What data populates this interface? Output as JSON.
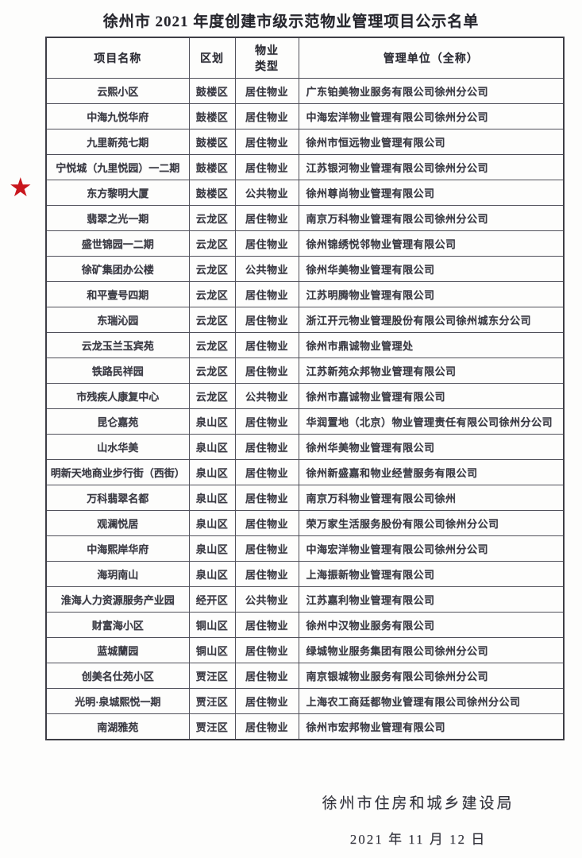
{
  "page": {
    "title": "徐州市 2021 年度创建市级示范物业管理项目公示名单"
  },
  "table": {
    "headers": {
      "project": "项目名称",
      "district": "区划",
      "type": "物业\n类型",
      "company": "管理单位（全称）"
    },
    "rows": [
      {
        "project": "云熙小区",
        "district": "鼓楼区",
        "type": "居住物业",
        "company": "广东铂美物业服务有限公司徐州分公司",
        "starred": false
      },
      {
        "project": "中海九悦华府",
        "district": "鼓楼区",
        "type": "居住物业",
        "company": "中海宏洋物业管理有限公司徐州分公司",
        "starred": false
      },
      {
        "project": "九里新苑七期",
        "district": "鼓楼区",
        "type": "居住物业",
        "company": "徐州市恒远物业管理有限公司",
        "starred": false
      },
      {
        "project": "宁悦城（九里悦园）一二期",
        "district": "鼓楼区",
        "type": "居住物业",
        "company": "江苏银河物业管理有限公司徐州分公司",
        "starred": false
      },
      {
        "project": "东方黎明大厦",
        "district": "鼓楼区",
        "type": "公共物业",
        "company": "徐州尊尚物业管理有限公司",
        "starred": true
      },
      {
        "project": "翡翠之光一期",
        "district": "云龙区",
        "type": "居住物业",
        "company": "南京万科物业管理有限公司徐州分公司",
        "starred": false
      },
      {
        "project": "盛世锦园一二期",
        "district": "云龙区",
        "type": "居住物业",
        "company": "徐州锦绣悦邻物业管理有限公司",
        "starred": false
      },
      {
        "project": "徐矿集团办公楼",
        "district": "云龙区",
        "type": "公共物业",
        "company": "徐州华美物业管理有限公司",
        "starred": false
      },
      {
        "project": "和平壹号四期",
        "district": "云龙区",
        "type": "居住物业",
        "company": "江苏明腾物业管理有限公司",
        "starred": false
      },
      {
        "project": "东瑞沁园",
        "district": "云龙区",
        "type": "居住物业",
        "company": "浙江开元物业管理股份有限公司徐州城东分公司",
        "starred": false
      },
      {
        "project": "云龙玉兰玉宾苑",
        "district": "云龙区",
        "type": "居住物业",
        "company": "徐州市鼎诚物业管理处",
        "starred": false
      },
      {
        "project": "铁路民祥园",
        "district": "云龙区",
        "type": "居住物业",
        "company": "江苏新苑众邦物业管理有限公司",
        "starred": false
      },
      {
        "project": "市残疾人康复中心",
        "district": "云龙区",
        "type": "公共物业",
        "company": "徐州市嘉诚物业管理有限公司",
        "starred": false
      },
      {
        "project": "昆仑嘉苑",
        "district": "泉山区",
        "type": "居住物业",
        "company": "华润置地（北京）物业管理责任有限公司徐州分公司",
        "starred": false
      },
      {
        "project": "山水华美",
        "district": "泉山区",
        "type": "居住物业",
        "company": "徐州华美物业管理有限公司",
        "starred": false
      },
      {
        "project": "明新天地商业步行街（西街）",
        "district": "泉山区",
        "type": "居住物业",
        "company": "徐州新盛嘉和物业经营服务有限公司",
        "starred": false
      },
      {
        "project": "万科翡翠名都",
        "district": "泉山区",
        "type": "居住物业",
        "company": "南京万科物业管理有限公司徐州",
        "starred": false
      },
      {
        "project": "观澜悦居",
        "district": "泉山区",
        "type": "居住物业",
        "company": "荣万家生活服务股份有限公司徐州分公司",
        "starred": false
      },
      {
        "project": "中海熙岸华府",
        "district": "泉山区",
        "type": "居住物业",
        "company": "中海宏洋物业管理有限公司徐州分公司",
        "starred": false
      },
      {
        "project": "海玥南山",
        "district": "泉山区",
        "type": "居住物业",
        "company": "上海振新物业管理有限公司",
        "starred": false
      },
      {
        "project": "淮海人力资源服务产业园",
        "district": "经开区",
        "type": "公共物业",
        "company": "江苏嘉利物业管理有限公司",
        "starred": false
      },
      {
        "project": "财富海小区",
        "district": "铜山区",
        "type": "居住物业",
        "company": "徐州中汉物业服务有限公司",
        "starred": false
      },
      {
        "project": "蓝城蘭园",
        "district": "铜山区",
        "type": "居住物业",
        "company": "绿城物业服务集团有限公司徐州分公司",
        "starred": false
      },
      {
        "project": "创美名仕苑小区",
        "district": "贾汪区",
        "type": "居住物业",
        "company": "南京银城物业服务有限公司徐州分公司",
        "starred": false
      },
      {
        "project": "光明·泉城熙悦一期",
        "district": "贾汪区",
        "type": "居住物业",
        "company": "上海农工商廷都物业管理有限公司徐州分公司",
        "starred": false
      },
      {
        "project": "南湖雅苑",
        "district": "贾汪区",
        "type": "居住物业",
        "company": "徐州市宏邦物业管理有限公司",
        "starred": false
      }
    ]
  },
  "star": {
    "glyph": "★",
    "color": "#c9161d"
  },
  "footer": {
    "org": "徐州市住房和城乡建设局",
    "date": "2021 年 11 月 12 日"
  },
  "colors": {
    "page_background": "#fdfdfc",
    "text": "#36363c",
    "border": "#50505a",
    "star_red": "#c9161d"
  }
}
